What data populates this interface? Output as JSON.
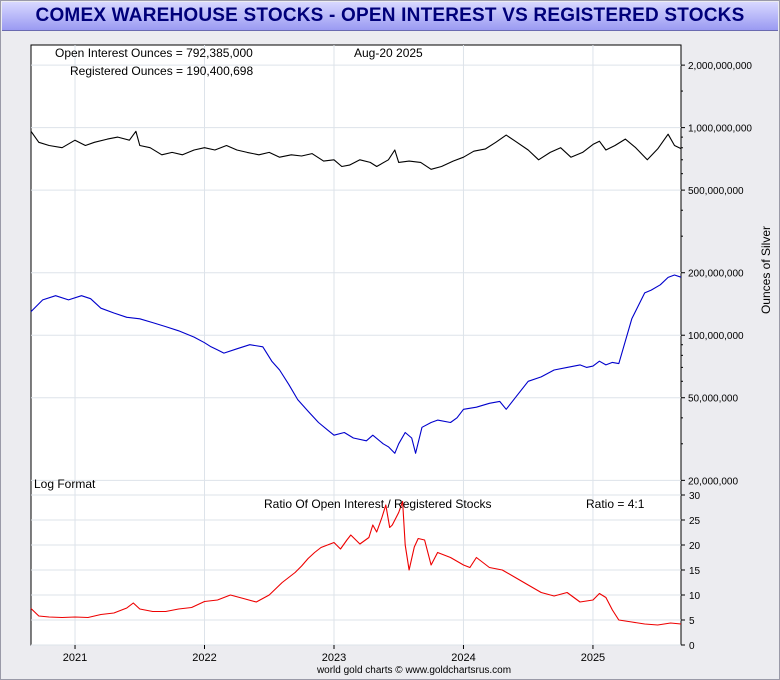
{
  "chart_data": {
    "title": "COMEX WAREHOUSE STOCKS - OPEN INTEREST VS REGISTERED STOCKS",
    "type": "line",
    "date_label": "Aug-20  2025",
    "log_label": "Log Format",
    "credit": "world gold charts © www.goldchartsrus.com",
    "x_range": [
      2020.66,
      2025.68
    ],
    "x_ticks": [
      {
        "value": 2021,
        "label": "2021"
      },
      {
        "value": 2022,
        "label": "2022"
      },
      {
        "value": 2023,
        "label": "2023"
      },
      {
        "value": 2024,
        "label": "2024"
      },
      {
        "value": 2025,
        "label": "2025"
      }
    ],
    "upper": {
      "scale": "log",
      "ylabel": "Ounces of Silver",
      "ylim": [
        17000000,
        2500000000
      ],
      "y_ticks": [
        {
          "value": 2000000000,
          "label": "2,000,000,000"
        },
        {
          "value": 1000000000,
          "label": "1,000,000,000"
        },
        {
          "value": 500000000,
          "label": "500,000,000"
        },
        {
          "value": 200000000,
          "label": "200,000,000"
        },
        {
          "value": 100000000,
          "label": "100,000,000"
        },
        {
          "value": 50000000,
          "label": "50,000,000"
        },
        {
          "value": 20000000,
          "label": "20,000,000"
        }
      ],
      "series": [
        {
          "name": "Open Interest Ounces",
          "legend": "Open Interest Ounces = 792,385,000",
          "color": "#000000",
          "x": [
            2020.66,
            2020.72,
            2020.8,
            2020.9,
            2021.0,
            2021.08,
            2021.15,
            2021.25,
            2021.33,
            2021.42,
            2021.47,
            2021.5,
            2021.58,
            2021.67,
            2021.75,
            2021.83,
            2021.92,
            2022.0,
            2022.08,
            2022.17,
            2022.25,
            2022.33,
            2022.42,
            2022.5,
            2022.58,
            2022.67,
            2022.75,
            2022.83,
            2022.92,
            2023.0,
            2023.06,
            2023.12,
            2023.2,
            2023.28,
            2023.33,
            2023.42,
            2023.47,
            2023.5,
            2023.58,
            2023.67,
            2023.75,
            2023.83,
            2023.92,
            2024.0,
            2024.08,
            2024.17,
            2024.25,
            2024.33,
            2024.4,
            2024.5,
            2024.58,
            2024.67,
            2024.75,
            2024.83,
            2024.92,
            2025.0,
            2025.05,
            2025.1,
            2025.17,
            2025.25,
            2025.33,
            2025.42,
            2025.5,
            2025.58,
            2025.63,
            2025.68
          ],
          "y": [
            960000000,
            850000000,
            820000000,
            800000000,
            870000000,
            820000000,
            850000000,
            880000000,
            900000000,
            870000000,
            960000000,
            820000000,
            800000000,
            740000000,
            760000000,
            740000000,
            780000000,
            800000000,
            780000000,
            820000000,
            780000000,
            760000000,
            740000000,
            760000000,
            720000000,
            740000000,
            730000000,
            750000000,
            690000000,
            700000000,
            650000000,
            660000000,
            700000000,
            680000000,
            650000000,
            700000000,
            780000000,
            680000000,
            690000000,
            680000000,
            630000000,
            650000000,
            690000000,
            720000000,
            770000000,
            790000000,
            850000000,
            920000000,
            860000000,
            780000000,
            700000000,
            760000000,
            800000000,
            720000000,
            760000000,
            830000000,
            860000000,
            780000000,
            820000000,
            880000000,
            800000000,
            700000000,
            790000000,
            930000000,
            820000000,
            792385000
          ]
        },
        {
          "name": "Registered Ounces",
          "legend": "Registered Ounces = 190,400,698",
          "color": "#0000cc",
          "x": [
            2020.66,
            2020.75,
            2020.85,
            2020.95,
            2021.05,
            2021.12,
            2021.2,
            2021.3,
            2021.4,
            2021.5,
            2021.6,
            2021.7,
            2021.8,
            2021.92,
            2022.0,
            2022.05,
            2022.1,
            2022.15,
            2022.25,
            2022.35,
            2022.45,
            2022.52,
            2022.58,
            2022.65,
            2022.72,
            2022.8,
            2022.88,
            2022.95,
            2023.0,
            2023.08,
            2023.15,
            2023.25,
            2023.3,
            2023.38,
            2023.42,
            2023.47,
            2023.5,
            2023.55,
            2023.6,
            2023.63,
            2023.68,
            2023.75,
            2023.8,
            2023.9,
            2023.95,
            2024.0,
            2024.1,
            2024.2,
            2024.28,
            2024.33,
            2024.4,
            2024.5,
            2024.6,
            2024.7,
            2024.8,
            2024.9,
            2024.95,
            2025.0,
            2025.05,
            2025.1,
            2025.15,
            2025.2,
            2025.3,
            2025.4,
            2025.45,
            2025.52,
            2025.58,
            2025.63,
            2025.68
          ],
          "y": [
            130000000,
            148000000,
            155000000,
            148000000,
            155000000,
            150000000,
            135000000,
            128000000,
            122000000,
            120000000,
            115000000,
            110000000,
            105000000,
            98000000,
            92000000,
            88000000,
            85000000,
            82000000,
            86000000,
            90000000,
            88000000,
            75000000,
            68000000,
            58000000,
            49000000,
            43000000,
            38000000,
            35000000,
            33000000,
            34000000,
            32000000,
            31000000,
            33000000,
            30000000,
            29000000,
            27000000,
            30000000,
            34000000,
            32000000,
            27000000,
            36000000,
            38000000,
            39000000,
            38000000,
            40000000,
            44000000,
            45000000,
            47000000,
            48000000,
            44000000,
            50000000,
            60000000,
            63000000,
            68000000,
            70000000,
            72000000,
            70000000,
            71000000,
            75000000,
            72000000,
            74000000,
            73000000,
            120000000,
            160000000,
            165000000,
            175000000,
            190000000,
            195000000,
            190400698
          ]
        }
      ]
    },
    "lower": {
      "title": "Ratio Of Open Interest / Registered Stocks",
      "legend": "Ratio = 4:1",
      "ylim": [
        0,
        30
      ],
      "y_ticks": [
        0,
        5,
        10,
        15,
        20,
        25,
        30
      ],
      "color": "#ee0000",
      "series": {
        "name": "Ratio",
        "x": [
          2020.66,
          2020.72,
          2020.8,
          2020.9,
          2021.0,
          2021.1,
          2021.2,
          2021.3,
          2021.4,
          2021.45,
          2021.5,
          2021.6,
          2021.7,
          2021.8,
          2021.9,
          2022.0,
          2022.1,
          2022.2,
          2022.3,
          2022.4,
          2022.5,
          2022.6,
          2022.7,
          2022.75,
          2022.8,
          2022.85,
          2022.9,
          2022.95,
          2023.0,
          2023.05,
          2023.1,
          2023.13,
          2023.2,
          2023.27,
          2023.3,
          2023.33,
          2023.37,
          2023.4,
          2023.43,
          2023.45,
          2023.5,
          2023.53,
          2023.55,
          2023.58,
          2023.62,
          2023.65,
          2023.7,
          2023.75,
          2023.8,
          2023.9,
          2024.0,
          2024.05,
          2024.1,
          2024.2,
          2024.3,
          2024.4,
          2024.5,
          2024.6,
          2024.7,
          2024.8,
          2024.9,
          2025.0,
          2025.05,
          2025.1,
          2025.15,
          2025.2,
          2025.3,
          2025.4,
          2025.5,
          2025.6,
          2025.68
        ],
        "y": [
          7.3,
          5.8,
          5.6,
          5.5,
          5.6,
          5.5,
          6.1,
          6.4,
          7.4,
          8.4,
          7.2,
          6.7,
          6.7,
          7.2,
          7.5,
          8.7,
          9.0,
          10.0,
          9.3,
          8.6,
          10.0,
          12.5,
          14.5,
          15.8,
          17.3,
          18.5,
          19.5,
          20.0,
          20.5,
          19.2,
          21.0,
          22.0,
          20.2,
          21.5,
          24.0,
          22.6,
          25.5,
          28.0,
          23.5,
          24.0,
          26.5,
          28.7,
          20.0,
          15.0,
          19.6,
          21.3,
          21.0,
          16.0,
          18.5,
          17.5,
          16.0,
          15.5,
          17.5,
          15.5,
          15.0,
          13.5,
          12.0,
          10.5,
          9.8,
          10.5,
          8.6,
          9.0,
          10.3,
          9.5,
          7.0,
          5.0,
          4.6,
          4.2,
          4.0,
          4.4,
          4.2
        ]
      }
    }
  }
}
